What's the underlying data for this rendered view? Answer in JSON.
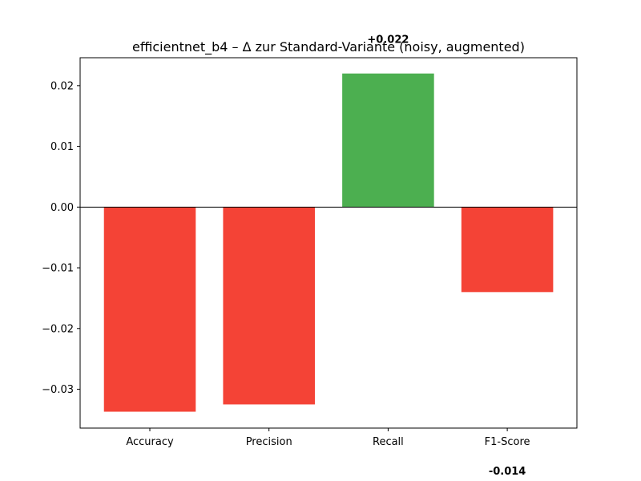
{
  "chart_data": {
    "type": "bar",
    "title": "efficientnet_b4 – Δ zur Standard-Variante (noisy, augmented)",
    "xlabel": "",
    "ylabel": "",
    "categories": [
      "Accuracy",
      "Precision",
      "Recall",
      "F1-Score"
    ],
    "values": [
      -0.0337,
      -0.0325,
      0.022,
      -0.014
    ],
    "value_labels": [
      "",
      "",
      "+0.022",
      "-0.014"
    ],
    "bar_colors": [
      "#f44336",
      "#f44336",
      "#4caf50",
      "#f44336"
    ],
    "ylim": [
      -0.0364,
      0.0246
    ],
    "yticks": [
      0.02,
      0.01,
      0.0,
      -0.01,
      -0.02,
      -0.03
    ],
    "ytick_labels": [
      "0.02",
      "0.01",
      "0.00",
      "−0.01",
      "−0.02",
      "−0.03"
    ],
    "zero_line": true,
    "grid": false,
    "legend": "none"
  }
}
